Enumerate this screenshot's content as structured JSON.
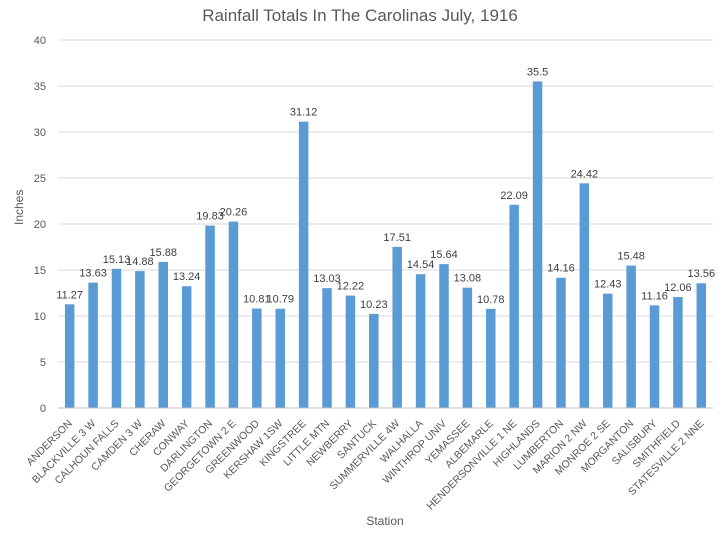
{
  "chart_data": {
    "type": "bar",
    "title": "Rainfall Totals In The Carolinas July, 1916",
    "xlabel": "Station",
    "ylabel": "Inches",
    "ylim": [
      0,
      40
    ],
    "yticks": [
      0,
      5,
      10,
      15,
      20,
      25,
      30,
      35,
      40
    ],
    "categories": [
      "ANDERSON",
      "BLACKVILLE 3 W",
      "CALHOUN FALLS",
      "CAMDEN 3 W",
      "CHERAW",
      "CONWAY",
      "DARLINGTON",
      "GEORGETOWN 2 E",
      "GREENWOOD",
      "KERSHAW 1SW",
      "KINGSTREE",
      "LITTLE MTN",
      "NEWBERRY",
      "SANTUCK",
      "SUMMERVILLE 4W",
      "WALHALLA",
      "WINTHROP UNIV",
      "YEMASSEE",
      "ALBEMARLE",
      "HENDERSONVILLE 1 NE",
      "HIGHLANDS",
      "LUMBERTON",
      "MARION 2 NW",
      "MONROE 2 SE",
      "MORGANTON",
      "SALISBURY",
      "SMITHFIELD",
      "STATESVILLE 2 NNE"
    ],
    "values": [
      11.27,
      13.63,
      15.13,
      14.88,
      15.88,
      13.24,
      19.83,
      20.26,
      10.81,
      10.79,
      31.12,
      13.03,
      12.22,
      10.23,
      17.51,
      14.54,
      15.64,
      13.08,
      10.78,
      22.09,
      35.5,
      14.16,
      24.42,
      12.43,
      15.48,
      11.16,
      12.06,
      13.56
    ],
    "grid": true,
    "legend": "none",
    "bar_color": "#5b9bd5",
    "grid_color": "#d9d9d9",
    "text_color": "#595959"
  }
}
